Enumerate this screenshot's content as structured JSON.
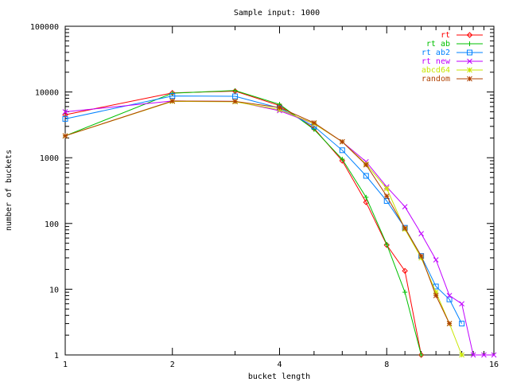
{
  "chart_data": {
    "type": "line",
    "title": "Sample input: 1000",
    "xlabel": "bucket length",
    "ylabel": "number of buckets",
    "xscale": "log2",
    "yscale": "log10",
    "xlim": [
      1,
      16
    ],
    "ylim": [
      1,
      100000
    ],
    "xticks": [
      1,
      2,
      4,
      8,
      16
    ],
    "yticks": [
      1,
      10,
      100,
      1000,
      10000,
      100000
    ],
    "legend_position": "top-right",
    "grid": false,
    "series": [
      {
        "name": "rt",
        "color": "#ff0000",
        "marker": "diamond",
        "x": [
          1,
          2,
          3,
          4,
          5,
          6,
          7,
          8,
          9,
          10
        ],
        "y": [
          4500,
          9700,
          10300,
          6200,
          2800,
          900,
          210,
          47,
          19,
          1
        ]
      },
      {
        "name": "rt ab",
        "color": "#00c000",
        "marker": "plus",
        "x": [
          1,
          2,
          3,
          4,
          5,
          6,
          7,
          8,
          9,
          10
        ],
        "y": [
          2150,
          9600,
          10500,
          6500,
          2700,
          950,
          250,
          48,
          9,
          1
        ]
      },
      {
        "name": "rt ab2",
        "color": "#0080ff",
        "marker": "square",
        "x": [
          1,
          2,
          3,
          4,
          5,
          6,
          7,
          8,
          9,
          10,
          11,
          12,
          13
        ],
        "y": [
          3900,
          8700,
          8600,
          5700,
          3000,
          1300,
          530,
          220,
          86,
          32,
          11,
          7,
          3
        ]
      },
      {
        "name": "rt new",
        "color": "#c000ff",
        "marker": "cross",
        "x": [
          1,
          2,
          3,
          4,
          5,
          6,
          7,
          8,
          9,
          10,
          11,
          12,
          13,
          14,
          15,
          16
        ],
        "y": [
          5000,
          7300,
          7200,
          5200,
          3300,
          1750,
          870,
          360,
          180,
          70,
          28,
          8,
          6,
          1,
          1,
          1
        ]
      },
      {
        "name": "abcd64",
        "color": "#c8e600",
        "marker": "asterisk",
        "x": [
          1,
          2,
          3,
          4,
          5,
          6,
          7,
          8,
          9,
          10,
          11,
          12,
          13
        ],
        "y": [
          2150,
          7200,
          7100,
          5400,
          3300,
          1750,
          800,
          340,
          82,
          30,
          9,
          3,
          1
        ]
      },
      {
        "name": "random",
        "color": "#b04000",
        "marker": "asterisk",
        "x": [
          1,
          2,
          3,
          4,
          5,
          6,
          7,
          8,
          9,
          10,
          11,
          12
        ],
        "y": [
          2150,
          7300,
          7200,
          5800,
          3400,
          1750,
          780,
          260,
          85,
          32,
          8,
          3
        ]
      }
    ]
  }
}
